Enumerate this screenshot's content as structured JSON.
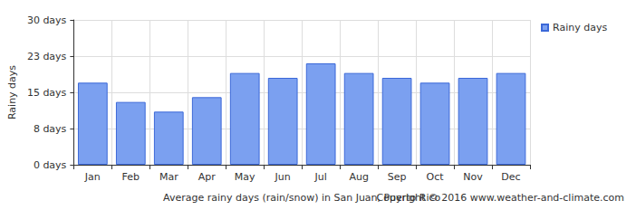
{
  "chart_data": {
    "type": "bar",
    "title": "Average rainy days (rain/snow) in San Juan, Puerto Rico",
    "annotations": [
      "Copyright © 2016 www.weather-and-climate.com"
    ],
    "y_label": "Rainy days",
    "categories": [
      "Jan",
      "Feb",
      "Mar",
      "Apr",
      "May",
      "Jun",
      "Jul",
      "Aug",
      "Sep",
      "Oct",
      "Nov",
      "Dec"
    ],
    "series": [
      {
        "name": "Rainy days",
        "color": "#7ba0f0",
        "values": [
          17,
          13,
          11,
          14,
          19,
          18,
          21,
          19,
          18,
          17,
          18,
          19
        ]
      }
    ],
    "ylim": [
      0,
      30
    ],
    "yticks": [
      {
        "value": 0,
        "label": "0 days"
      },
      {
        "value": 7.5,
        "label": "8 days"
      },
      {
        "value": 15,
        "label": "15 days"
      },
      {
        "value": 22.5,
        "label": "23 days"
      },
      {
        "value": 30,
        "label": "30 days"
      }
    ],
    "grid": true,
    "legend": "top-right"
  }
}
